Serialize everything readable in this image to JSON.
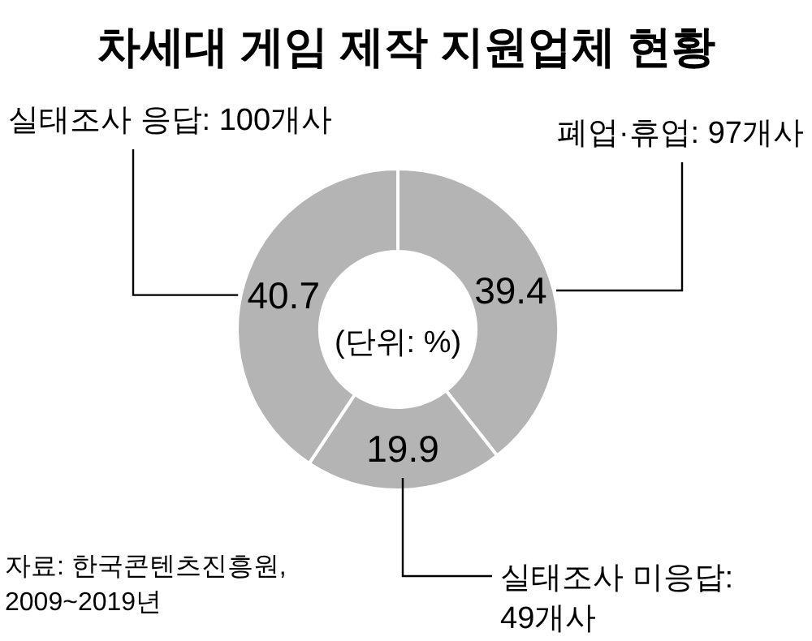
{
  "chart_data": {
    "type": "donut",
    "title": "차세대 게임 제작 지원업체 현황",
    "categories": [
      "폐업·휴업: 97개사",
      "실태조사 미응답: 49개사",
      "실태조사 응답: 100개사"
    ],
    "values": [
      39.4,
      19.9,
      40.7
    ],
    "colors": [
      "#b4b4b4",
      "#b4b4b4",
      "#b4b4b4"
    ],
    "data_labels": true,
    "annotations": [
      "(단위: %)",
      "자료: 한국콘텐츠진흥원, 2009~2019년"
    ]
  }
}
